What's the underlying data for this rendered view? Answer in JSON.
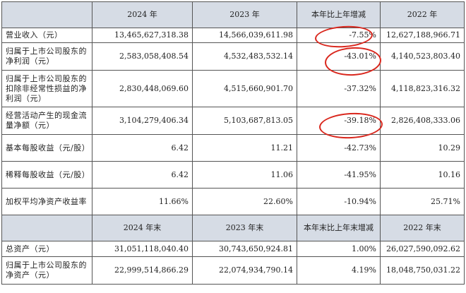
{
  "header1": {
    "c1": "2024 年",
    "c2": "2023 年",
    "c3": "本年比上年增减",
    "c4": "2022 年"
  },
  "rows1": [
    {
      "label": "营业收入（元）",
      "v1": "13,465,627,318.38",
      "v2": "14,566,039,611.98",
      "v3": "-7.55%",
      "v4": "12,627,188,966.71"
    },
    {
      "label": "归属于上市公司股东的净利润（元）",
      "v1": "2,583,058,408.54",
      "v2": "4,532,483,532.14",
      "v3": "-43.01%",
      "v4": "4,140,523,803.40"
    },
    {
      "label": "归属于上市公司股东的扣除非经常性损益的净利润（元）",
      "v1": "2,830,448,069.60",
      "v2": "4,515,660,901.70",
      "v3": "-37.32%",
      "v4": "4,118,823,316.32"
    },
    {
      "label": "经营活动产生的现金流量净额（元）",
      "v1": "3,104,279,406.34",
      "v2": "5,103,687,813.05",
      "v3": "-39.18%",
      "v4": "2,826,408,333.06"
    },
    {
      "label": "基本每股收益（元/股）",
      "v1": "6.42",
      "v2": "11.21",
      "v3": "-42.73%",
      "v4": "10.29"
    },
    {
      "label": "稀释每股收益（元/股）",
      "v1": "6.42",
      "v2": "11.06",
      "v3": "-41.95%",
      "v4": "10.16"
    },
    {
      "label": "加权平均净资产收益率",
      "v1": "11.66%",
      "v2": "22.60%",
      "v3": "-10.94%",
      "v4": "25.71%"
    }
  ],
  "header2": {
    "c1": "2024 年末",
    "c2": "2023 年末",
    "c3": "本年末比上年末增减",
    "c4": "2022 年末"
  },
  "rows2": [
    {
      "label": "总资产（元）",
      "v1": "31,051,118,040.40",
      "v2": "30,743,650,924.81",
      "v3": "1.00%",
      "v4": "26,027,590,092.62"
    },
    {
      "label": "归属于上市公司股东的净资产（元）",
      "v1": "22,999,514,866.29",
      "v2": "22,074,934,790.14",
      "v3": "4.19%",
      "v4": "18,048,750,031.22"
    }
  ],
  "highlight_color": "#d9261c"
}
